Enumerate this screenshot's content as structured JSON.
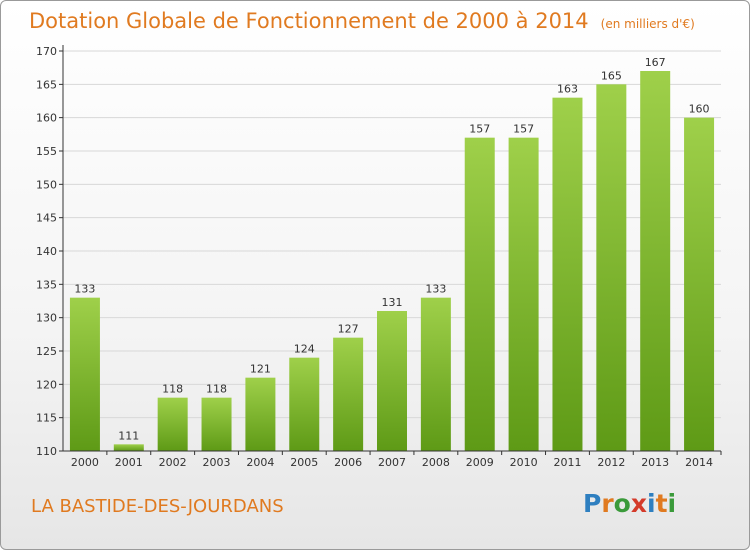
{
  "chart_data": {
    "type": "bar",
    "title": "Dotation Globale de Fonctionnement de 2000 à 2014",
    "subtitle": "(en milliers d'€)",
    "categories": [
      "2000",
      "2001",
      "2002",
      "2003",
      "2004",
      "2005",
      "2006",
      "2007",
      "2008",
      "2009",
      "2010",
      "2011",
      "2012",
      "2013",
      "2014"
    ],
    "values": [
      133,
      111,
      118,
      118,
      121,
      124,
      127,
      131,
      133,
      157,
      157,
      163,
      165,
      167,
      160
    ],
    "xlabel": "",
    "ylabel": "",
    "ylim": [
      110,
      170
    ],
    "yticks": [
      110,
      115,
      120,
      125,
      130,
      135,
      140,
      145,
      150,
      155,
      160,
      165,
      170
    ],
    "grid": true
  },
  "commune": "LA BASTIDE-DES-JOURDANS",
  "logo": {
    "text": "Proxiti",
    "letters": [
      "P",
      "r",
      "o",
      "x",
      "i",
      "t",
      "i"
    ],
    "colors": [
      "#2e7fc0",
      "#e07a20",
      "#3a9a3a",
      "#d43a2a",
      "#2e7fc0",
      "#e07a20",
      "#3a9a3a"
    ]
  },
  "colors": {
    "bar_top": "#9fd04a",
    "bar_bottom": "#5e9a16",
    "accent": "#e07a20",
    "axis": "#333333",
    "grid": "#d8d8d8"
  }
}
